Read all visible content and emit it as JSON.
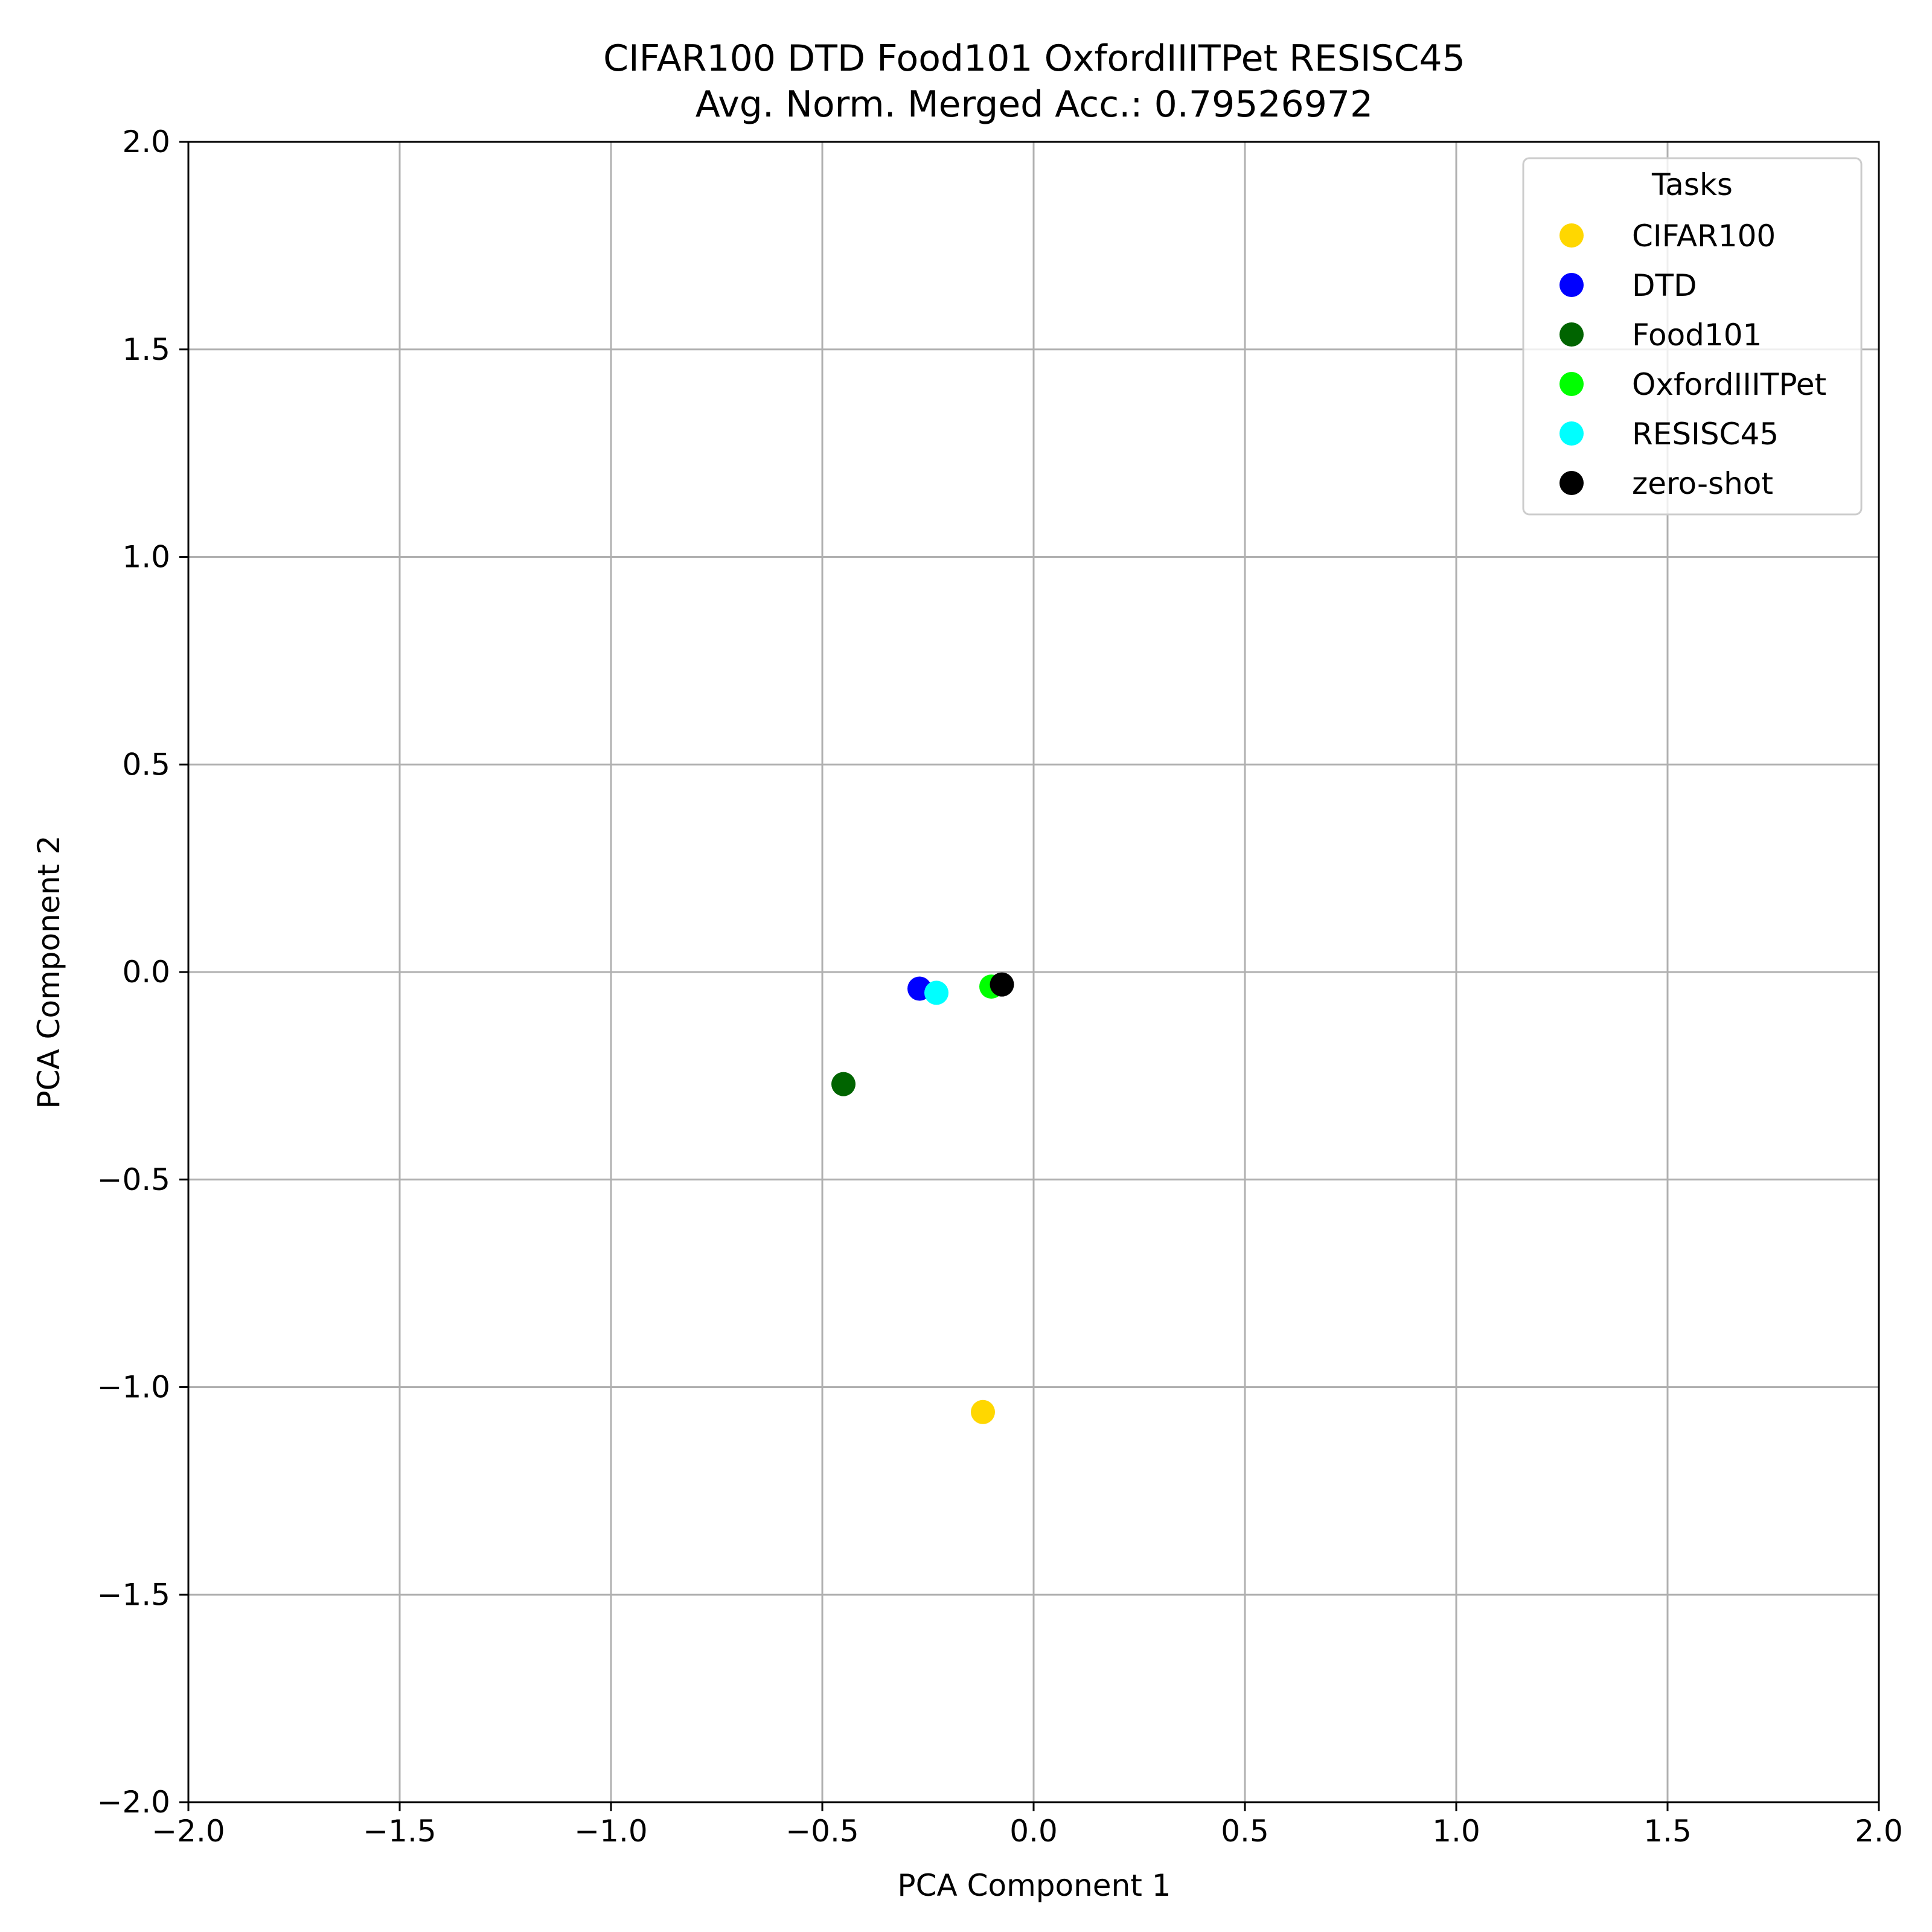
{
  "chart_data": {
    "type": "scatter",
    "title_line1": "CIFAR100 DTD Food101 OxfordIIITPet RESISC45",
    "title_line2": "Avg. Norm. Merged Acc.: 0.79526972",
    "xlabel": "PCA Component 1",
    "ylabel": "PCA Component 2",
    "xlim": [
      -2.0,
      2.0
    ],
    "ylim": [
      -2.0,
      2.0
    ],
    "xticks": [
      -2.0,
      -1.5,
      -1.0,
      -0.5,
      0.0,
      0.5,
      1.0,
      1.5,
      2.0
    ],
    "yticks": [
      -2.0,
      -1.5,
      -1.0,
      -0.5,
      0.0,
      0.5,
      1.0,
      1.5,
      2.0
    ],
    "xtick_labels": [
      "−2.0",
      "−1.5",
      "−1.0",
      "−0.5",
      "0.0",
      "0.5",
      "1.0",
      "1.5",
      "2.0"
    ],
    "ytick_labels": [
      "−2.0",
      "−1.5",
      "−1.0",
      "−0.5",
      "0.0",
      "0.5",
      "1.0",
      "1.5",
      "2.0"
    ],
    "grid": true,
    "legend": {
      "title": "Tasks",
      "placement": "top-right"
    },
    "series": [
      {
        "name": "CIFAR100",
        "color": "#FFD700",
        "x": -0.12,
        "y": -1.06
      },
      {
        "name": "DTD",
        "color": "#0000FF",
        "x": -0.27,
        "y": -0.04
      },
      {
        "name": "Food101",
        "color": "#006400",
        "x": -0.45,
        "y": -0.27
      },
      {
        "name": "OxfordIIITPet",
        "color": "#00FF00",
        "x": -0.1,
        "y": -0.035
      },
      {
        "name": "RESISC45",
        "color": "#00FFFF",
        "x": -0.23,
        "y": -0.05
      },
      {
        "name": "zero-shot",
        "color": "#000000",
        "x": -0.075,
        "y": -0.03
      }
    ]
  }
}
